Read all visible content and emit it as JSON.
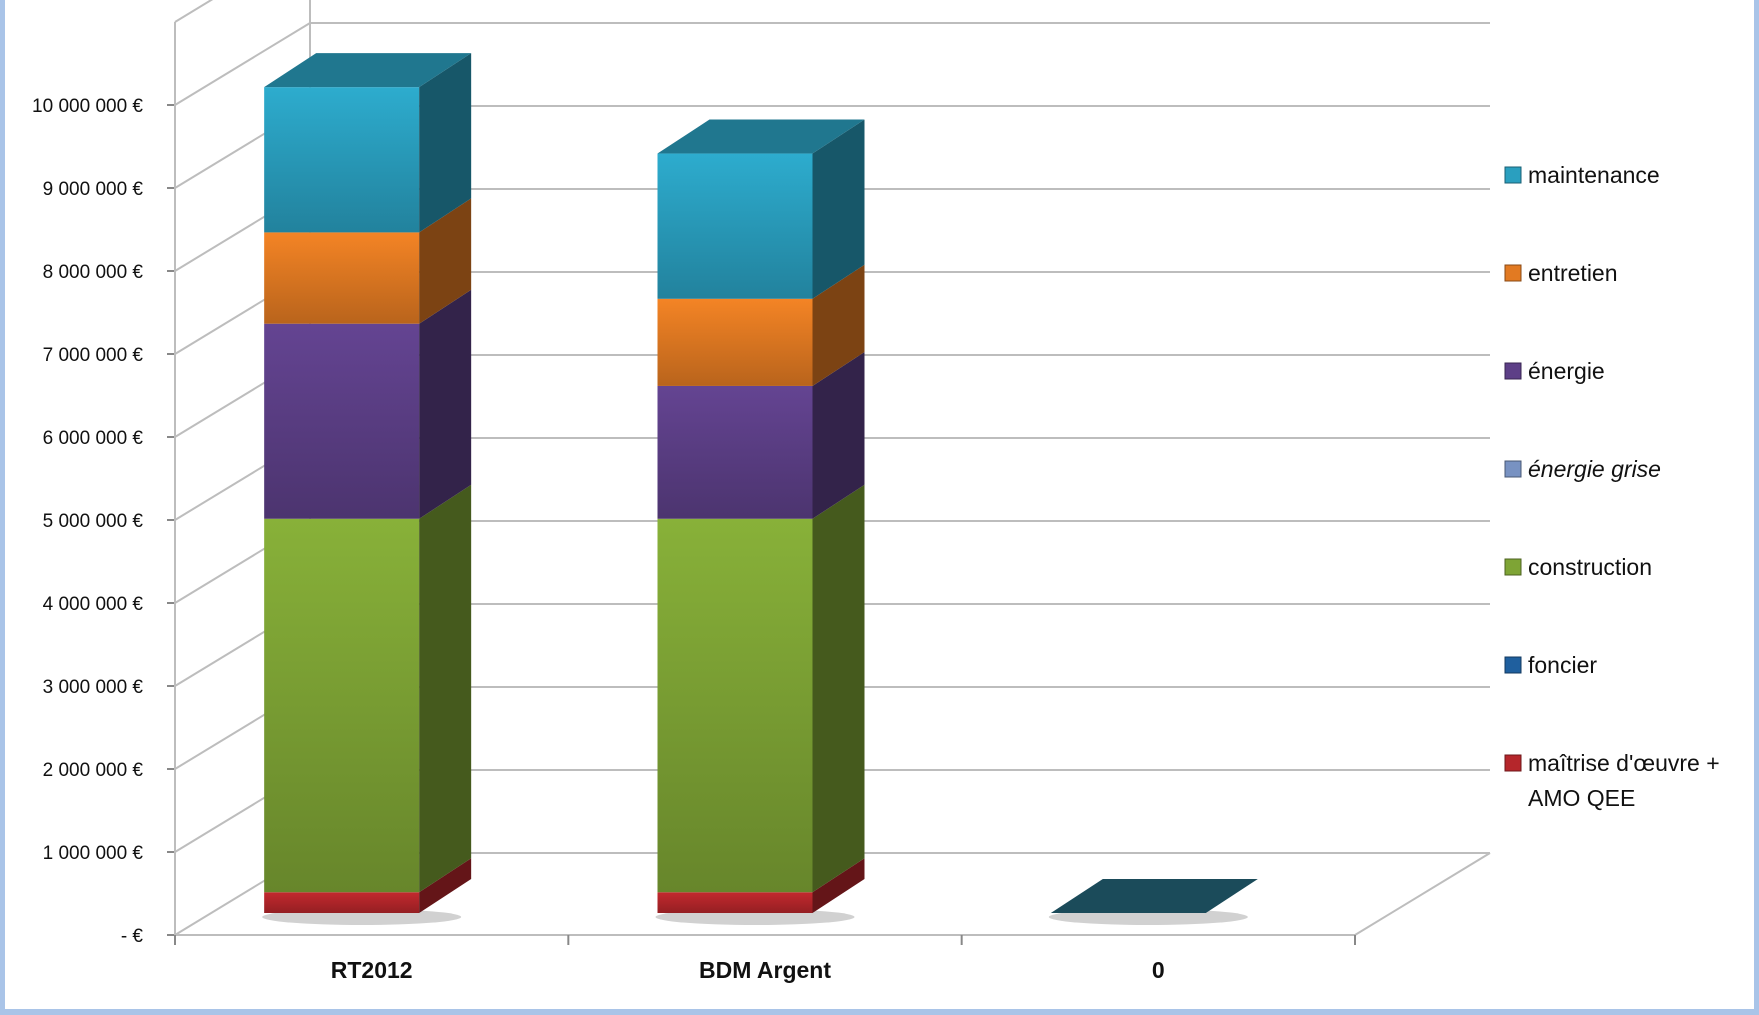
{
  "chart_data": {
    "type": "bar",
    "stacked": true,
    "three_d": true,
    "title": "",
    "xlabel": "",
    "ylabel": "",
    "ylim": [
      0,
      10000000
    ],
    "y_ticks": [
      "10 000 000 €",
      "9 000 000 €",
      "8 000 000 €",
      "7 000 000 €",
      "6 000 000 €",
      "5 000 000 €",
      "4 000 000 €",
      "3 000 000 €",
      "2 000 000 €",
      "1 000 000 €",
      "-  €"
    ],
    "categories": [
      "RT2012",
      "BDM Argent",
      "0"
    ],
    "grid": true,
    "legend_position": "right",
    "series": [
      {
        "name": "maîtrise d'œuvre + AMO QEE",
        "color": "#b5262b",
        "values": [
          250000,
          250000,
          0
        ]
      },
      {
        "name": "foncier",
        "color": "#1f5f9e",
        "values": [
          0,
          0,
          0
        ]
      },
      {
        "name": "construction",
        "color": "#7ea435",
        "values": [
          4500000,
          4500000,
          0
        ]
      },
      {
        "name": "énergie grise",
        "color": "#7892c2",
        "values": [
          0,
          0,
          0
        ]
      },
      {
        "name": "énergie",
        "color": "#5d3f87",
        "values": [
          2350000,
          1600000,
          0
        ]
      },
      {
        "name": "entretien",
        "color": "#e27a22",
        "values": [
          1100000,
          1050000,
          0
        ]
      },
      {
        "name": "maintenance",
        "color": "#2a9fbf",
        "values": [
          1750000,
          1750000,
          0
        ]
      }
    ],
    "legend_order": [
      "maintenance",
      "entretien",
      "énergie",
      "énergie grise",
      "construction",
      "foncier",
      "maîtrise d'œuvre + AMO QEE"
    ]
  }
}
